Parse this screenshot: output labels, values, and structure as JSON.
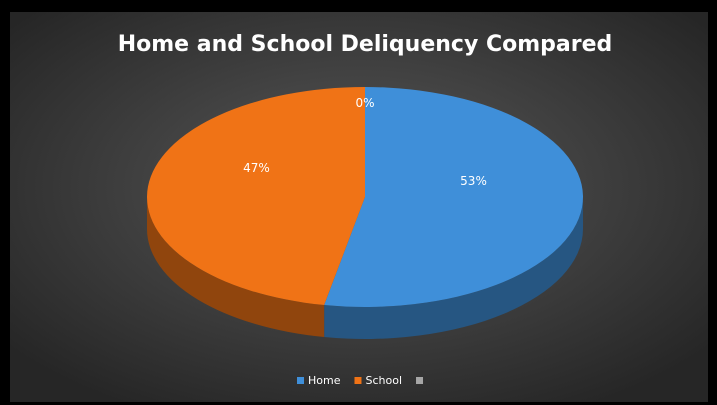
{
  "chart_data": {
    "type": "pie",
    "title": "Home and School Deliquency Compared",
    "categories": [
      "Home",
      "School",
      null
    ],
    "values": [
      53,
      47,
      0
    ],
    "value_labels": [
      "53%",
      "47%",
      "0%"
    ],
    "colors": [
      "#3f8fd9",
      "#f07316",
      "#a6a6a6"
    ],
    "legend": "bottom"
  }
}
